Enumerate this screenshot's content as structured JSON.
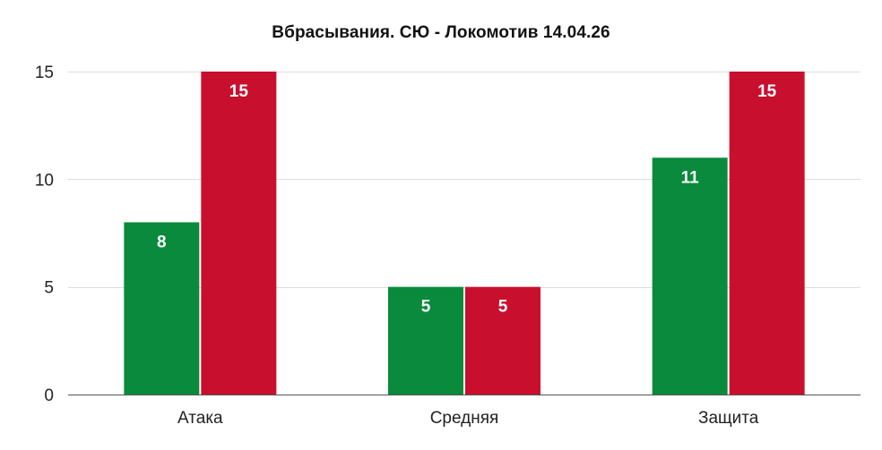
{
  "chart_data": {
    "type": "bar",
    "title": "Вбрасывания. СЮ - Локомотив 14.04.26",
    "xlabel": "",
    "ylabel": "",
    "categories": [
      "Атака",
      "Средняя",
      "Защита"
    ],
    "series": [
      {
        "values": [
          8,
          5,
          11
        ],
        "color": "#0a8a3c"
      },
      {
        "values": [
          15,
          5,
          15
        ],
        "color": "#c8102e"
      }
    ],
    "ylim": [
      0,
      15
    ],
    "yticks": [
      0,
      5,
      10,
      15
    ],
    "grid": true,
    "legend": "none",
    "data_labels": true
  }
}
